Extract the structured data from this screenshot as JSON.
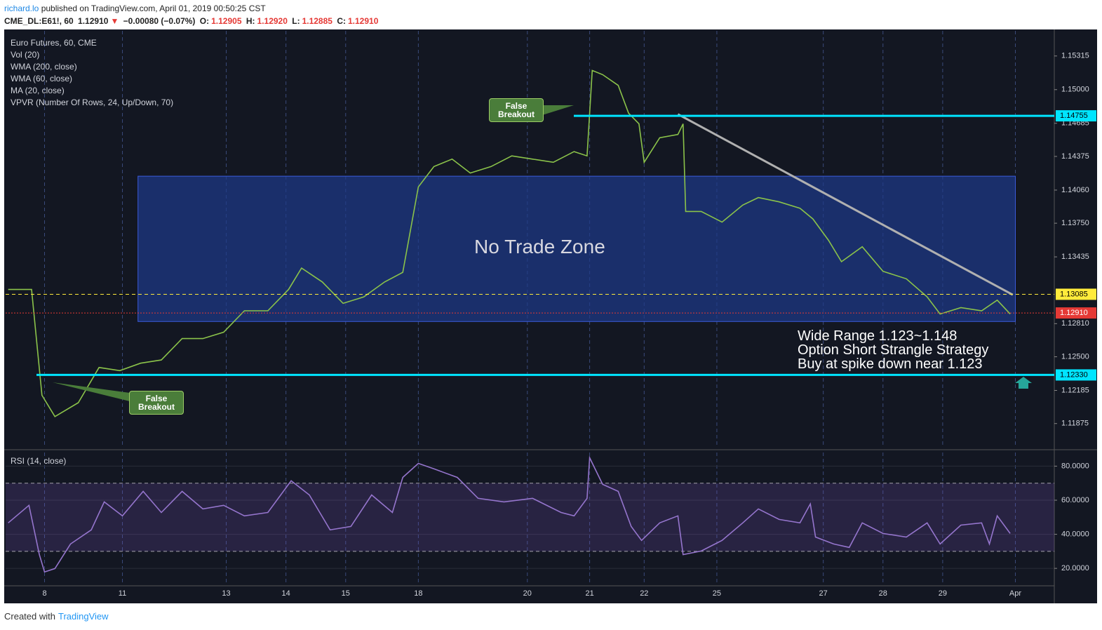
{
  "header": {
    "user": "richard.lo",
    "published": "published on TradingView.com, April 01, 2019 00:50:25 CST",
    "symbol": "CME_DL:E61!, 60",
    "last": "1.12910",
    "change": "−0.00080 (−0.07%)",
    "open_label": "O:",
    "open": "1.12905",
    "high_label": "H:",
    "high": "1.12920",
    "low_label": "L:",
    "low": "1.12885",
    "close_label": "C:",
    "close": "1.12910"
  },
  "legend": [
    "Euro Futures, 60, CME",
    "Vol (20)",
    "WMA (200, close)",
    "WMA (60, close)",
    "MA (20, close)",
    "VPVR (Number Of Rows, 24, Up/Down, 70)"
  ],
  "annotations": {
    "false_breakout_1": "False Breakout",
    "false_breakout_2": "False Breakout",
    "zone_label": "No Trade Zone",
    "notes": [
      "Wide Range 1.123~1.148",
      "Option Short Strangle Strategy",
      "Buy at spike down near 1.123"
    ]
  },
  "chart_data": [
    {
      "type": "line",
      "name": "Euro Futures",
      "color": "#8bc34a",
      "x": [
        1,
        10,
        14,
        19,
        28,
        36,
        44,
        52,
        60,
        68,
        76,
        84,
        92,
        101,
        109,
        114,
        122,
        130,
        138,
        146,
        153,
        159,
        165,
        172,
        179,
        187,
        195,
        203,
        211,
        219,
        224,
        226,
        230,
        236,
        240,
        244,
        246,
        252,
        259,
        261,
        262,
        268,
        276,
        284,
        290,
        298,
        306,
        311,
        317,
        322,
        330,
        338,
        347,
        355,
        360,
        368,
        376,
        382,
        387
      ],
      "values": [
        1.1313,
        1.1313,
        1.1214,
        1.1194,
        1.1207,
        1.124,
        1.1237,
        1.1244,
        1.1247,
        1.1267,
        1.1267,
        1.1273,
        1.1293,
        1.1293,
        1.1313,
        1.1333,
        1.132,
        1.13,
        1.1306,
        1.132,
        1.1329,
        1.1409,
        1.1428,
        1.1435,
        1.1422,
        1.1428,
        1.1438,
        1.1435,
        1.1432,
        1.1442,
        1.1438,
        1.1518,
        1.1514,
        1.1504,
        1.1478,
        1.1468,
        1.1432,
        1.1455,
        1.1458,
        1.1468,
        1.1386,
        1.1386,
        1.1376,
        1.1392,
        1.1399,
        1.1395,
        1.1389,
        1.1379,
        1.1359,
        1.1339,
        1.1353,
        1.133,
        1.1323,
        1.1306,
        1.129,
        1.1296,
        1.1293,
        1.1303,
        1.129
      ],
      "xlim": [
        0,
        404
      ],
      "ylim": [
        1.1165,
        1.1555
      ],
      "xticks": [
        {
          "value": 15,
          "label": "8"
        },
        {
          "value": 45,
          "label": "11"
        },
        {
          "value": 85,
          "label": "13"
        },
        {
          "value": 108,
          "label": "14"
        },
        {
          "value": 131,
          "label": "15"
        },
        {
          "value": 159,
          "label": "18"
        },
        {
          "value": 201,
          "label": "20"
        },
        {
          "value": 225,
          "label": "21"
        },
        {
          "value": 246,
          "label": "22"
        },
        {
          "value": 274,
          "label": "25"
        },
        {
          "value": 315,
          "label": "27"
        },
        {
          "value": 338,
          "label": "28"
        },
        {
          "value": 361,
          "label": "29"
        },
        {
          "value": 389,
          "label": "Apr"
        }
      ],
      "yticks": [
        1.15315,
        {
          "value": 1.15,
          "label": "1.15000"
        },
        1.14685,
        1.14375,
        {
          "value": 1.1406,
          "label": "1.14060"
        },
        {
          "value": 1.1375,
          "label": "1.13750"
        },
        1.13435,
        {
          "value": 1.1281,
          "label": "1.12810"
        },
        {
          "value": 1.125,
          "label": "1.12500"
        },
        1.12185,
        1.11875
      ],
      "levels": [
        {
          "value": 1.14755,
          "label": "1.14755",
          "color": "#00e5ff"
        },
        {
          "value": 1.13085,
          "label": "1.13085",
          "color": "#ffeb3b"
        },
        {
          "value": 1.1291,
          "label": "1.12910",
          "color": "#e53935"
        },
        {
          "value": 1.1233,
          "label": "1.12330",
          "color": "#00e5ff"
        }
      ],
      "zone": {
        "x": [
          51,
          389
        ],
        "y": [
          1.1419,
          1.1283
        ],
        "color": "#1e3a8a"
      },
      "trendline": {
        "x": [
          259,
          388
        ],
        "values": [
          1.1477,
          1.1308
        ],
        "color": "#b0b0b0"
      }
    },
    {
      "type": "line",
      "title": "RSI (14, close)",
      "color": "#9575cd",
      "x": [
        1,
        9,
        13,
        15,
        19,
        25,
        33,
        38,
        45,
        53,
        60,
        68,
        76,
        84,
        92,
        101,
        110,
        117,
        125,
        133,
        141,
        149,
        153,
        159,
        165,
        174,
        182,
        192,
        203,
        214,
        219,
        224,
        225,
        230,
        236,
        241,
        245,
        252,
        259,
        261,
        268,
        276,
        284,
        290,
        298,
        306,
        310,
        312,
        319,
        325,
        330,
        338,
        347,
        355,
        360,
        368,
        376,
        379,
        382,
        387
      ],
      "values": [
        46.7,
        57,
        28.1,
        17.9,
        19.9,
        34.3,
        42.6,
        59,
        50.8,
        65.2,
        52.8,
        65.2,
        54.9,
        57,
        50.8,
        52.8,
        71.4,
        63.1,
        42.6,
        44.6,
        63.1,
        52.8,
        73.4,
        81.6,
        78.4,
        73.4,
        61.1,
        59,
        61.1,
        52.8,
        50.8,
        61.1,
        84.9,
        69.3,
        65.2,
        44.6,
        36.4,
        46.7,
        50.8,
        28.1,
        30.2,
        36.4,
        46.7,
        54.9,
        48.7,
        46.7,
        57.8,
        38.4,
        34.3,
        32.3,
        46.7,
        40.5,
        38.4,
        46.7,
        34.3,
        45.4,
        46.7,
        34.3,
        50.8,
        40.5
      ],
      "xlim": [
        0,
        404
      ],
      "ylim": [
        11,
        88
      ],
      "bands": [
        30,
        70
      ],
      "yticks": [
        {
          "value": 80,
          "label": "80.0000"
        },
        {
          "value": 60,
          "label": "60.0000"
        },
        {
          "value": 40,
          "label": "40.0000"
        },
        {
          "value": 20,
          "label": "20.0000"
        }
      ]
    }
  ],
  "footer": {
    "created": "Created with",
    "brand": "TradingView"
  }
}
